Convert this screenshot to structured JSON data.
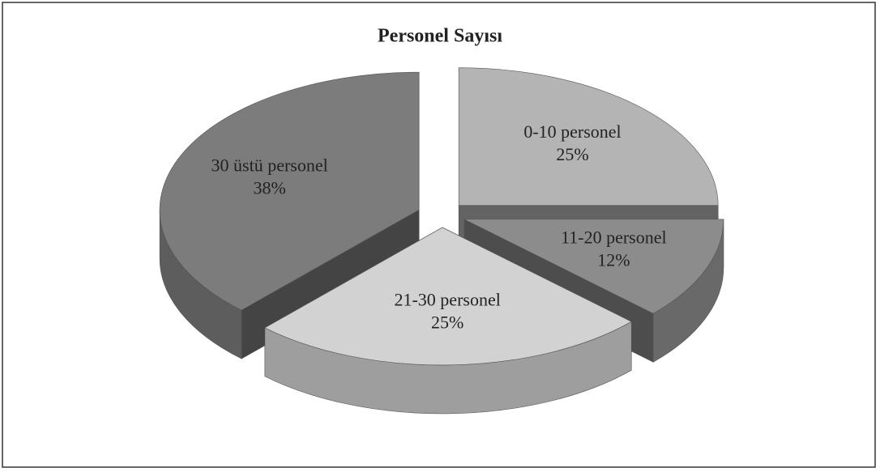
{
  "chart_data": {
    "type": "pie3d",
    "title": "Personel Sayısı",
    "categories": [
      "0-10 personel",
      "11-20 personel",
      "21-30 personel",
      "30 üstü personel"
    ],
    "values": [
      25,
      12,
      25,
      38
    ],
    "value_labels": [
      "25%",
      "12%",
      "25%",
      "38%"
    ],
    "colors": [
      "#b4b4b4",
      "#8c8c8c",
      "#d2d2d2",
      "#7c7c7c"
    ]
  }
}
